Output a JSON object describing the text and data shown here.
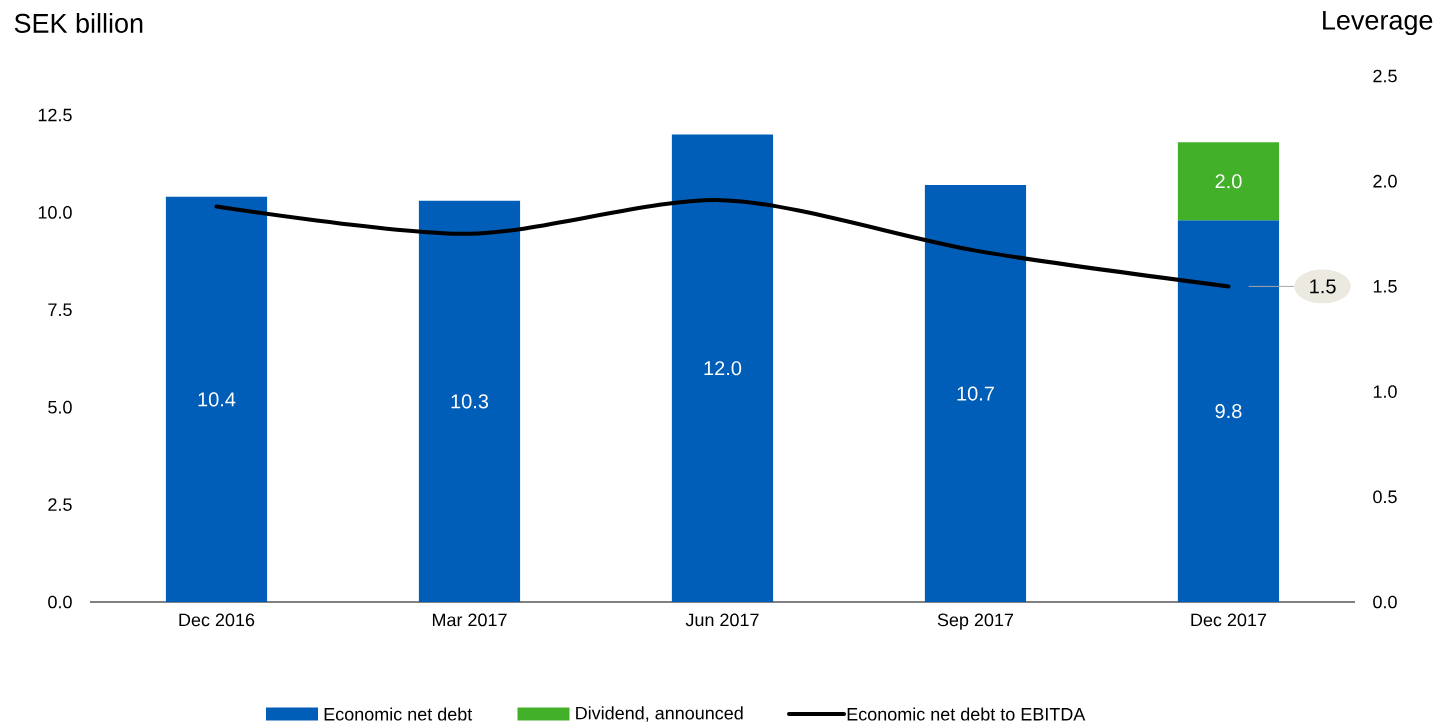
{
  "chart_data": {
    "type": "bar",
    "ylabel": "SEK billion",
    "y2label": "Leverage",
    "categories": [
      "Dec 2016",
      "Mar 2017",
      "Jun 2017",
      "Sep 2017",
      "Dec 2017"
    ],
    "stacked": true,
    "series": [
      {
        "name": "Economic net debt",
        "color": "#005eb8",
        "values": [
          10.4,
          10.3,
          12.0,
          10.7,
          9.8
        ],
        "value_labels": [
          "10.4",
          "10.3",
          "12.0",
          "10.7",
          "9.8"
        ]
      },
      {
        "name": "Dividend, announced",
        "color": "#43b02a",
        "values": [
          null,
          null,
          null,
          null,
          2.0
        ],
        "value_labels": [
          null,
          null,
          null,
          null,
          "2.0"
        ]
      },
      {
        "name": "Economic net debt to EBITDA",
        "type": "line",
        "axis": "y2",
        "color": "#000000",
        "values": [
          1.88,
          1.75,
          1.91,
          1.67,
          1.5
        ]
      }
    ],
    "annotations": [
      "1.5"
    ],
    "ylim": [
      0,
      12.5
    ],
    "yticks": [
      {
        "value": 0,
        "label": "0.0"
      },
      {
        "value": 2.5,
        "label": "2.5"
      },
      {
        "value": 5,
        "label": "5.0"
      },
      {
        "value": 7.5,
        "label": "7.5"
      },
      {
        "value": 10,
        "label": "10.0"
      },
      {
        "value": 12.5,
        "label": "12.5"
      }
    ],
    "y2lim": [
      0,
      2.5
    ],
    "y2ticks": [
      {
        "value": 0,
        "label": "0.0"
      },
      {
        "value": 0.5,
        "label": "0.5"
      },
      {
        "value": 1,
        "label": "1.0"
      },
      {
        "value": 1.5,
        "label": "1.5"
      },
      {
        "value": 2,
        "label": "2.0"
      },
      {
        "value": 2.5,
        "label": "2.5"
      }
    ],
    "grid": false,
    "legend": "bottom"
  }
}
